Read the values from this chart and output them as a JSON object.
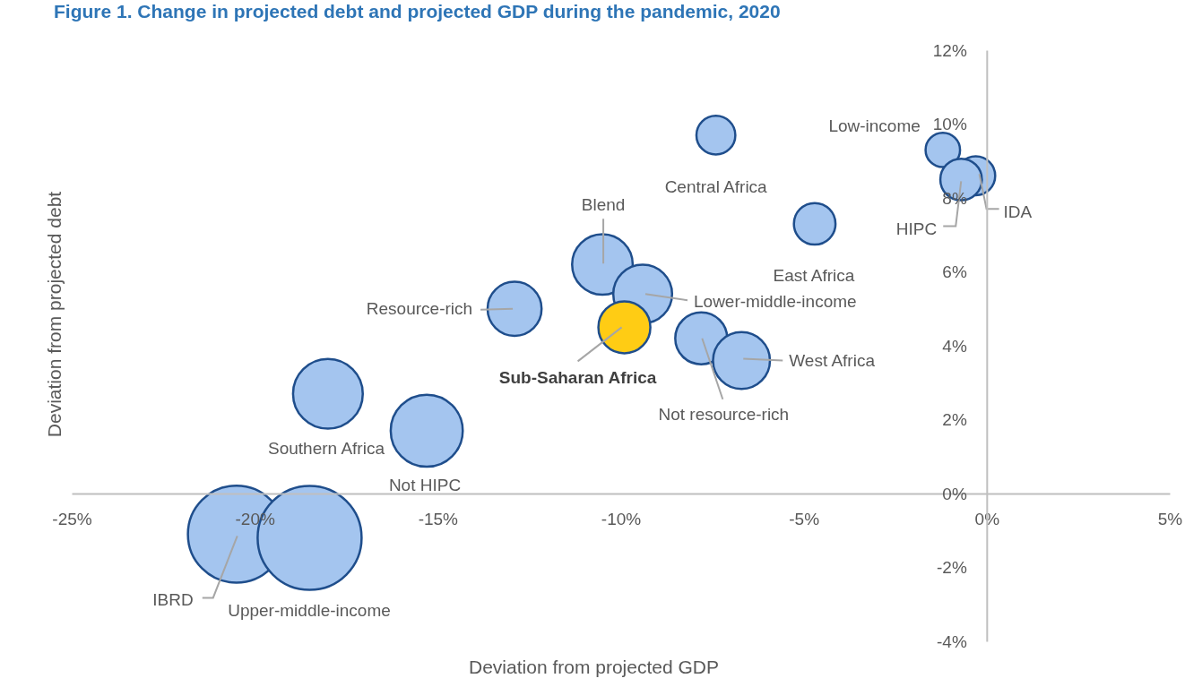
{
  "chart_data": {
    "type": "bubble",
    "title": "Figure 1. Change in projected debt and projected GDP during the pandemic, 2020",
    "xlabel": "Deviation from projected GDP",
    "ylabel": "Deviation from projected debt",
    "x": [
      -7.4,
      -1.2,
      -0.3,
      -0.7,
      -4.7,
      -10.5,
      -9.4,
      -12.9,
      -9.9,
      -7.8,
      -6.7,
      -18.0,
      -15.3,
      -20.5,
      -18.5
    ],
    "values": [
      9.7,
      9.3,
      8.6,
      8.5,
      7.3,
      6.2,
      5.4,
      5.0,
      4.5,
      4.2,
      3.6,
      2.7,
      1.7,
      -1.1,
      -1.2
    ],
    "sizes": [
      0.14,
      0.11,
      0.14,
      0.16,
      0.16,
      0.34,
      0.32,
      0.27,
      0.25,
      0.25,
      0.3,
      0.45,
      0.48,
      0.87,
      1
    ],
    "colors": [
      "#a4c5ef",
      "#a4c5ef",
      "#a4c5ef",
      "#a4c5ef",
      "#a4c5ef",
      "#a4c5ef",
      "#a4c5ef",
      "#a4c5ef",
      "#ffcc14",
      "#a4c5ef",
      "#a4c5ef",
      "#a4c5ef",
      "#a4c5ef",
      "#a4c5ef",
      "#a4c5ef"
    ],
    "annotations": [
      {
        "text": "Central Africa",
        "x": -7.4,
        "y": 9.7
      },
      {
        "text": "Low-income",
        "x": -1.2,
        "y": 9.3
      },
      {
        "text": "IDA",
        "x": -0.3,
        "y": 8.6
      },
      {
        "text": "HIPC",
        "x": -0.7,
        "y": 8.5
      },
      {
        "text": "East Africa",
        "x": -4.7,
        "y": 7.3
      },
      {
        "text": "Blend",
        "x": -10.5,
        "y": 6.2
      },
      {
        "text": "Lower-middle-income",
        "x": -9.4,
        "y": 5.4
      },
      {
        "text": "Resource-rich",
        "x": -12.9,
        "y": 5.0
      },
      {
        "text": "Sub-Saharan Africa",
        "x": -9.9,
        "y": 4.5
      },
      {
        "text": "Not resource-rich",
        "x": -7.8,
        "y": 4.2
      },
      {
        "text": "West Africa",
        "x": -6.7,
        "y": 3.6
      },
      "Southern Africa",
      "Not HIPC",
      {
        "text": "IBRD",
        "x": -20.5,
        "y": -1.1
      },
      "Upper-middle-income"
    ],
    "xlim": [
      -25,
      5
    ],
    "ylim": [
      -4,
      12
    ],
    "xticks": [
      {
        "value": -25,
        "label": "-25%"
      },
      {
        "value": -20,
        "label": "-20%"
      },
      {
        "value": -15,
        "label": "-15%"
      },
      {
        "value": -10,
        "label": "-10%"
      },
      {
        "value": -5,
        "label": "-5%"
      },
      {
        "value": 0,
        "label": "0%"
      },
      {
        "value": 5,
        "label": "5%"
      }
    ],
    "yticks": [
      {
        "value": -4,
        "label": "-4%"
      },
      {
        "value": -2,
        "label": "-2%"
      },
      {
        "value": 0,
        "label": "0%"
      },
      {
        "value": 2,
        "label": "2%"
      },
      {
        "value": 4,
        "label": "4%"
      },
      {
        "value": 6,
        "label": "6%"
      },
      {
        "value": 8,
        "label": "8%"
      },
      {
        "value": 10,
        "label": "10%"
      },
      {
        "value": 12,
        "label": "12%"
      }
    ],
    "grid": false
  }
}
